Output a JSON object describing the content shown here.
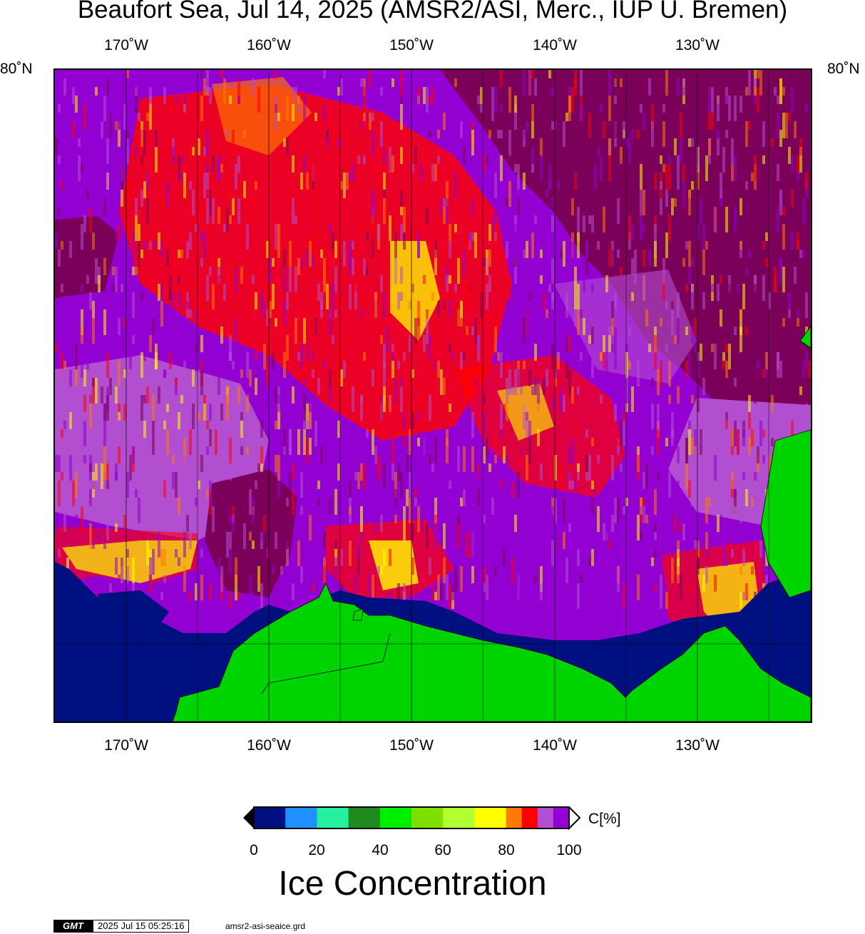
{
  "title": "Beaufort Sea, Jul 14, 2025 (AMSR2/ASI, Merc., IUP U. Bremen)",
  "map": {
    "lon_labels": [
      "170˚W",
      "160˚W",
      "150˚W",
      "140˚W",
      "130˚W"
    ],
    "lat_label": "80˚N",
    "colors": {
      "land": "#00d400",
      "open_water": "#001080",
      "ice_100": "#7b005a",
      "ice_98": "#9200d2",
      "ice_95": "#b24fd0",
      "ice_90": "#ff0000",
      "ice_85": "#ff7a00",
      "ice_80": "#ffff00",
      "ice_70": "#b0ff30"
    }
  },
  "colorbar": {
    "ticks": [
      "0",
      "20",
      "40",
      "60",
      "80",
      "100"
    ],
    "unit": "C[%]",
    "label": "Ice Concentration",
    "segments": [
      "#001080",
      "#1e90ff",
      "#25f0a0",
      "#208a20",
      "#00ee00",
      "#7ee000",
      "#b0ff30",
      "#ffff00",
      "#ff7a00",
      "#ff0000",
      "#b24fd0",
      "#9200d2"
    ]
  },
  "footer": {
    "logo": "GMT",
    "timestamp": "2025 Jul 15 05:25:16",
    "grid_file": "amsr2-asi-seaice.grd"
  }
}
